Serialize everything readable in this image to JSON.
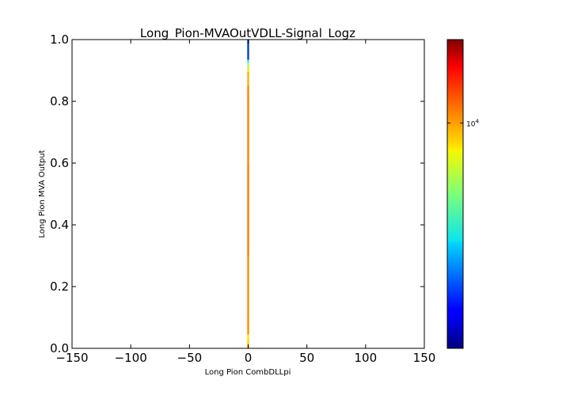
{
  "chart_data": {
    "type": "heatmap",
    "title": "Long_Pion-MVAOutVDLL-Signal_Logz",
    "xlabel": "Long Pion CombDLLpi",
    "ylabel": "Long Pion MVA Output",
    "xlim": [
      -150,
      150
    ],
    "ylim": [
      0.0,
      1.0
    ],
    "x_ticks": [
      "−150",
      "−100",
      "−50",
      "0",
      "50",
      "100",
      "150"
    ],
    "x_tick_values": [
      -150,
      -100,
      -50,
      0,
      50,
      100,
      150
    ],
    "y_ticks": [
      "0.0",
      "0.2",
      "0.4",
      "0.6",
      "0.8",
      "1.0"
    ],
    "y_tick_values": [
      0.0,
      0.2,
      0.4,
      0.6,
      0.8,
      1.0
    ],
    "grid": false,
    "colorbar": {
      "scale": "log",
      "colormap": "jet",
      "tick_base": "10",
      "tick_exponent": "4",
      "tick_position_fraction": 0.73
    },
    "column": {
      "x": 0,
      "segments": [
        {
          "y0": 0.0,
          "y1": 0.01,
          "color": "#ff9a00"
        },
        {
          "y0": 0.01,
          "y1": 0.03,
          "color": "#ffd000"
        },
        {
          "y0": 0.03,
          "y1": 0.045,
          "color": "#ffe800"
        },
        {
          "y0": 0.045,
          "y1": 0.3,
          "color": "#ff8c00"
        },
        {
          "y0": 0.3,
          "y1": 0.6,
          "color": "#ff7a00"
        },
        {
          "y0": 0.6,
          "y1": 0.85,
          "color": "#ff8400"
        },
        {
          "y0": 0.85,
          "y1": 0.895,
          "color": "#ffb000"
        },
        {
          "y0": 0.895,
          "y1": 0.91,
          "color": "#ffe000"
        },
        {
          "y0": 0.91,
          "y1": 0.925,
          "color": "#a0ff60"
        },
        {
          "y0": 0.925,
          "y1": 0.935,
          "color": "#30e0ff"
        },
        {
          "y0": 0.935,
          "y1": 1.0,
          "color": "#0a3cc8"
        }
      ]
    }
  }
}
